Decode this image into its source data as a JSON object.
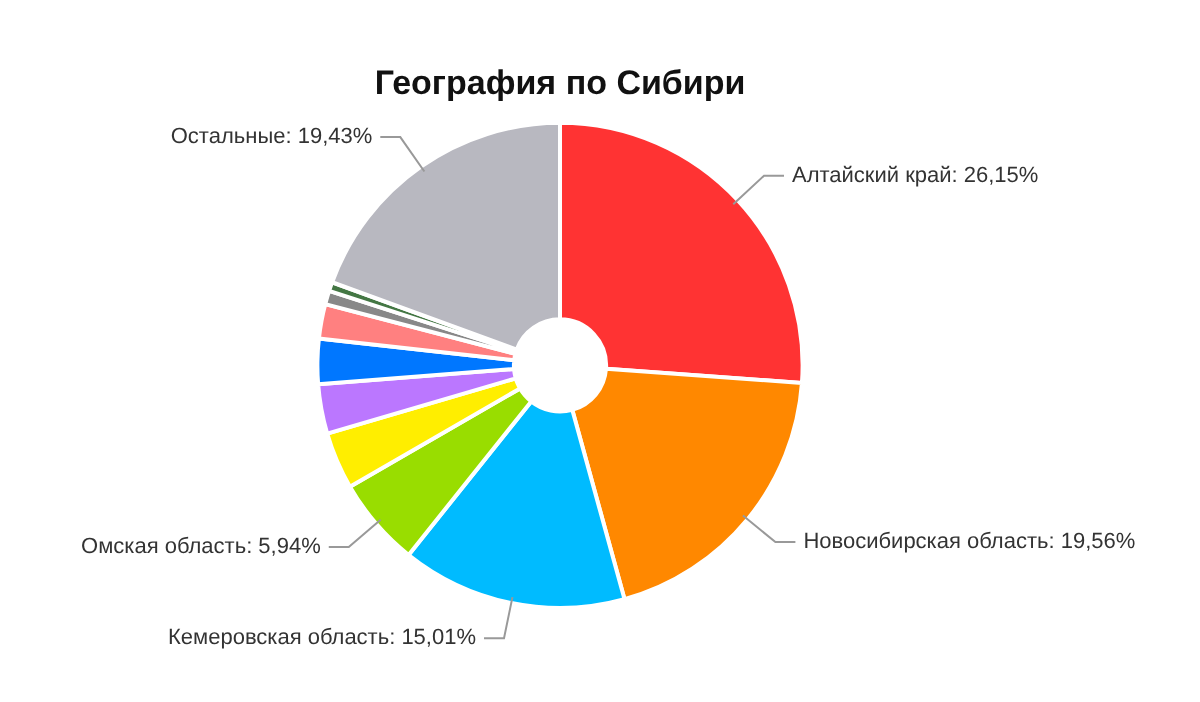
{
  "chart_data": {
    "type": "donut",
    "title": "География по Сибири",
    "categories": [
      "Алтайский край",
      "Новосибирская область",
      "Кемеровская область",
      "Омская область",
      null,
      null,
      null,
      null,
      null,
      null,
      "Остальные"
    ],
    "values": [
      26.15,
      19.56,
      15.01,
      5.94,
      3.8,
      3.3,
      3.0,
      2.3,
      0.9,
      0.6,
      19.43
    ],
    "value_labels": [
      "26,15%",
      "19,56%",
      "15,01%",
      "5,94%",
      null,
      null,
      null,
      null,
      null,
      null,
      "19,43%"
    ],
    "colors": [
      "#ff3333",
      "#ff8800",
      "#00bbff",
      "#99dd00",
      "#ffee00",
      "#bb77ff",
      "#0077ff",
      "#ff8080",
      "#888888",
      "#447744",
      "#b8b8c0"
    ],
    "legend": false
  }
}
